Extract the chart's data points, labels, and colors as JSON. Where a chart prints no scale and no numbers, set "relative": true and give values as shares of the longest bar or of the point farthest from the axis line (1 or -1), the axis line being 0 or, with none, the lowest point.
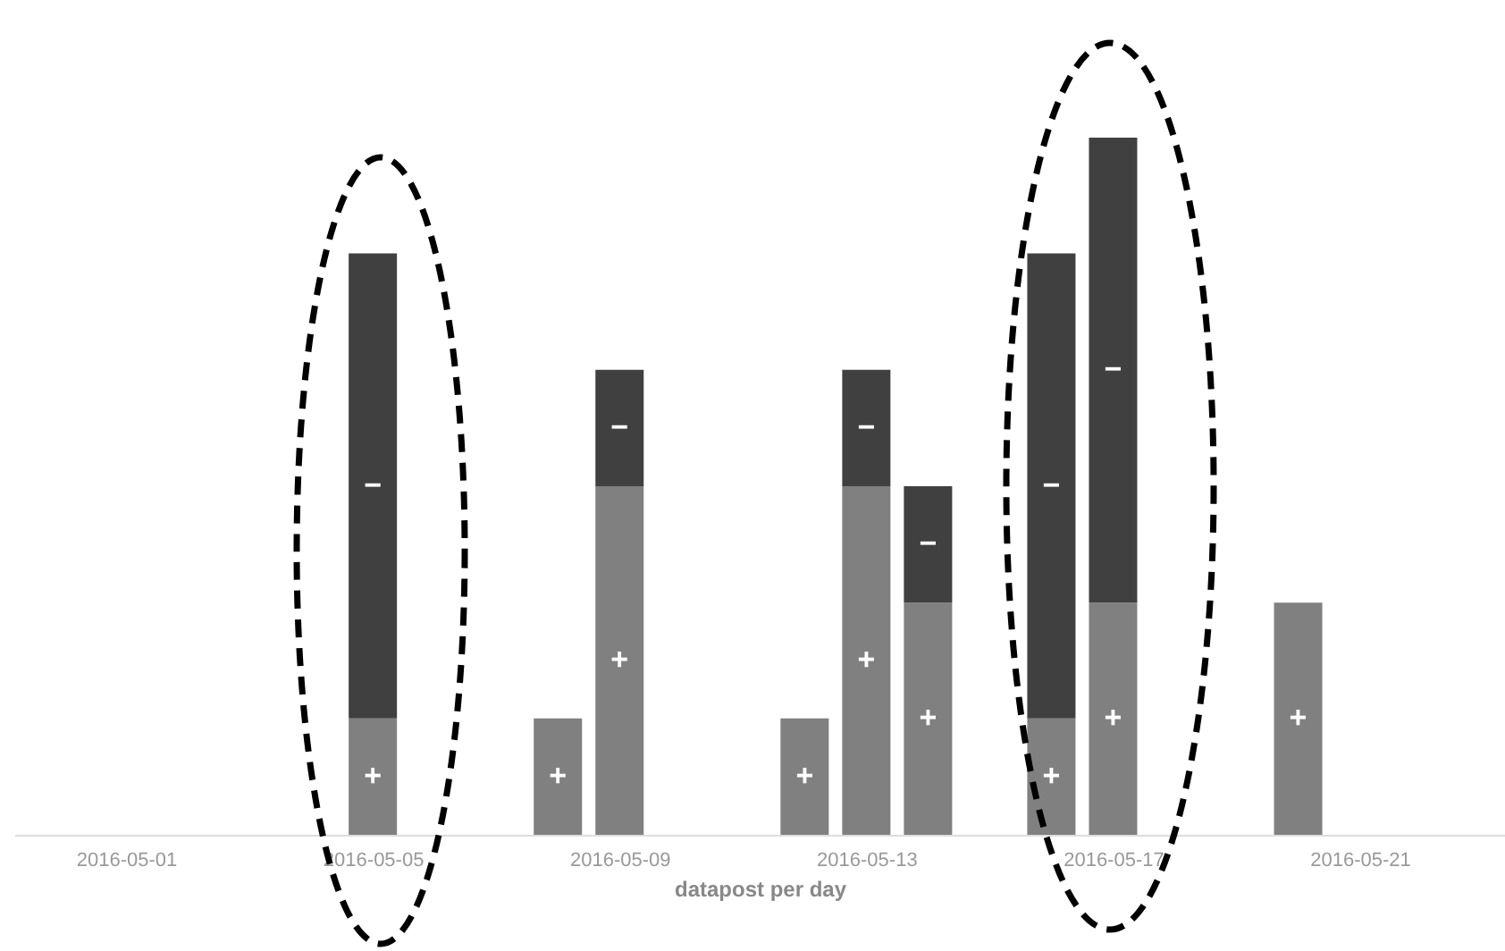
{
  "chart_data": {
    "type": "bar",
    "stacked": true,
    "relative": true,
    "xlabel": "datapost per day",
    "x": [
      "2016-05-05",
      "2016-05-08",
      "2016-05-09",
      "2016-05-12",
      "2016-05-13",
      "2016-05-14",
      "2016-05-16",
      "2016-05-17",
      "2016-05-20"
    ],
    "xlim": [
      "2016-04-29T08:00",
      "2016-05-23T05:00"
    ],
    "xticks": [
      "2016-05-01",
      "2016-05-05",
      "2016-05-09",
      "2016-05-13",
      "2016-05-17",
      "2016-05-21"
    ],
    "series": [
      {
        "name": "+",
        "color": "#808080",
        "values": [
          0.167,
          0.167,
          0.5,
          0.167,
          0.5,
          0.333,
          0.167,
          0.333,
          0.333
        ]
      },
      {
        "name": "−",
        "color": "#404040",
        "values": [
          0.667,
          null,
          0.167,
          null,
          0.167,
          0.167,
          0.667,
          0.667,
          null
        ]
      }
    ],
    "grid": false
  }
}
